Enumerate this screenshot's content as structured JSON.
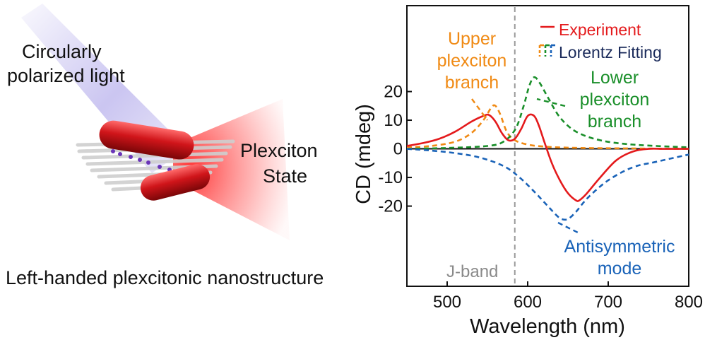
{
  "illustration": {
    "light_label_line1": "Circularly",
    "light_label_line2": "polarized light",
    "state_label_line1": "Plexciton",
    "state_label_line2": "State",
    "caption": "Left-handed plexcitonic nanostructure",
    "colors": {
      "light_beam": "#8b7fe0",
      "emission": "#ff4a4a",
      "nanorod": "#c90f12",
      "fibers": "#d9d9d9",
      "dye": "#6a35b8"
    }
  },
  "chart_data": {
    "type": "line",
    "xlabel": "Wavelength (nm)",
    "ylabel": "CD (mdeg)",
    "xlim": [
      450,
      800
    ],
    "ylim": [
      -48,
      50
    ],
    "xticks": [
      500,
      600,
      700,
      800
    ],
    "yticks": [
      -20,
      -10,
      0,
      10,
      20
    ],
    "ytick_labels": [
      "-20",
      "-10",
      "0",
      "10",
      "20"
    ],
    "grid": false,
    "legend_position": "top-right",
    "legend_group": "Lorentz Fitting",
    "reference_line": {
      "x": 584,
      "label": "J-band",
      "style": "dashed",
      "color": "#9a9a9a"
    },
    "annotations": [
      {
        "lines": [
          "Upper",
          "plexciton",
          "branch"
        ],
        "color": "#f08a14"
      },
      {
        "lines": [
          "Lower",
          "plexciton",
          "branch"
        ],
        "color": "#1a8f2a"
      },
      {
        "lines": [
          "Antisymmetric",
          "mode"
        ],
        "color": "#1a63b8"
      }
    ],
    "series": [
      {
        "name": "Experiment",
        "style": "solid",
        "color": "#e41a1c",
        "x": [
          450,
          470,
          490,
          510,
          530,
          545,
          552,
          560,
          568,
          576,
          584,
          592,
          600,
          608,
          614,
          620,
          630,
          640,
          650,
          660,
          664,
          672,
          690,
          710,
          730,
          750,
          770,
          800
        ],
        "y": [
          1,
          2,
          3.5,
          6,
          9.5,
          11.5,
          11.8,
          9.5,
          5.5,
          3,
          3.5,
          7,
          11.5,
          11.5,
          8,
          3,
          -5,
          -11,
          -15.5,
          -18,
          -18,
          -16,
          -10,
          -4,
          -1,
          0,
          0,
          0
        ]
      },
      {
        "name": "Upper plexciton branch",
        "style": "dashed",
        "color": "#f08a14",
        "x": [
          450,
          480,
          510,
          530,
          545,
          555,
          560,
          566,
          574,
          584,
          600,
          620,
          650,
          700,
          800
        ],
        "y": [
          0.5,
          1,
          2.5,
          5.5,
          10,
          14.5,
          15,
          12,
          6,
          3,
          1.5,
          0.8,
          0.4,
          0.2,
          0
        ]
      },
      {
        "name": "Lower plexciton branch",
        "style": "dashed",
        "color": "#1a8f2a",
        "x": [
          450,
          500,
          550,
          570,
          585,
          595,
          602,
          608,
          615,
          625,
          640,
          660,
          690,
          730,
          800
        ],
        "y": [
          0,
          0.3,
          1,
          2.5,
          7,
          15,
          22,
          25,
          23,
          18,
          11,
          6,
          3,
          1.5,
          0.5
        ]
      },
      {
        "name": "Antisymmetric mode",
        "style": "dashed",
        "color": "#1a63b8",
        "x": [
          450,
          480,
          510,
          540,
          570,
          590,
          610,
          625,
          635,
          642,
          650,
          660,
          675,
          700,
          730,
          760,
          800
        ],
        "y": [
          0,
          -0.6,
          -1.5,
          -3,
          -6,
          -10,
          -15.5,
          -20,
          -23,
          -24.5,
          -24.5,
          -22,
          -17,
          -11,
          -6.5,
          -4.5,
          -2
        ]
      }
    ]
  }
}
